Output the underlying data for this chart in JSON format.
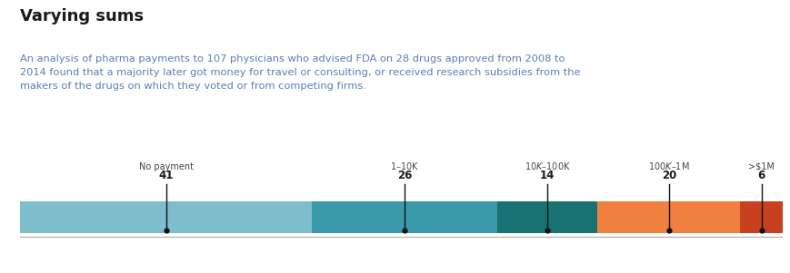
{
  "title": "Varying sums",
  "title_color": "#1a1a1a",
  "subtitle": "An analysis of pharma payments to 107 physicians who advised FDA on 28 drugs approved from 2008 to\n2014 found that a majority later got money for travel or consulting, or received research subsidies from the\nmakers of the drugs on which they voted or from competing firms.",
  "subtitle_color": "#5b7fb5",
  "categories": [
    "No payment",
    "$1–$10K",
    "$10K–$100K",
    "$100K–$1M",
    ">$1M"
  ],
  "counts": [
    41,
    26,
    14,
    20,
    6
  ],
  "total": 107,
  "segments": [
    41,
    26,
    14,
    20,
    6
  ],
  "bar_colors": [
    "#7dbdcc",
    "#3a9aaa",
    "#197272",
    "#f08040",
    "#c84020"
  ],
  "bar_height": 0.5,
  "label_color": "#444444",
  "count_color": "#1a1a1a",
  "pin_color": "#111111",
  "background_color": "#ffffff",
  "figsize": [
    8.7,
    3.01
  ],
  "dpi": 100
}
